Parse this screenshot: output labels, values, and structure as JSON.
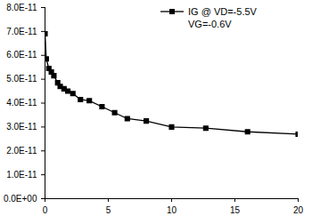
{
  "chart_data": {
    "type": "line",
    "series": [
      {
        "name": "IG @ VD=-5.5V",
        "color": "#000000",
        "marker": "square",
        "x": [
          0,
          0.1,
          0.3,
          0.5,
          0.7,
          1.0,
          1.2,
          1.5,
          1.8,
          2.2,
          2.8,
          3.5,
          4.5,
          5.5,
          6.5,
          8,
          10,
          12.7,
          16,
          20
        ],
        "values": [
          6.9e-11,
          5.85e-11,
          5.45e-11,
          5.3e-11,
          5.15e-11,
          4.85e-11,
          4.7e-11,
          4.6e-11,
          4.5e-11,
          4.4e-11,
          4.15e-11,
          4.1e-11,
          3.85e-11,
          3.6e-11,
          3.35e-11,
          3.25e-11,
          3e-11,
          2.95e-11,
          2.8e-11,
          2.7e-11
        ]
      }
    ],
    "annotation": "VG=-0.6V",
    "legend": "upper right",
    "grid": false,
    "xlim": [
      0,
      20
    ],
    "xticks": [
      0,
      5,
      10,
      15,
      20
    ],
    "ylim": [
      0,
      8e-11
    ],
    "yticks": [
      {
        "value": 0,
        "label": "0.0E+00"
      },
      {
        "value": 1e-11,
        "label": "1.0E-11"
      },
      {
        "value": 2e-11,
        "label": "2.0E-11"
      },
      {
        "value": 3e-11,
        "label": "3.0E-11"
      },
      {
        "value": 4e-11,
        "label": "4.0E-11"
      },
      {
        "value": 5e-11,
        "label": "5.0E-11"
      },
      {
        "value": 6e-11,
        "label": "6.0E-11"
      },
      {
        "value": 7e-11,
        "label": "7.0E-11"
      },
      {
        "value": 8e-11,
        "label": "8.0E-11"
      }
    ]
  }
}
